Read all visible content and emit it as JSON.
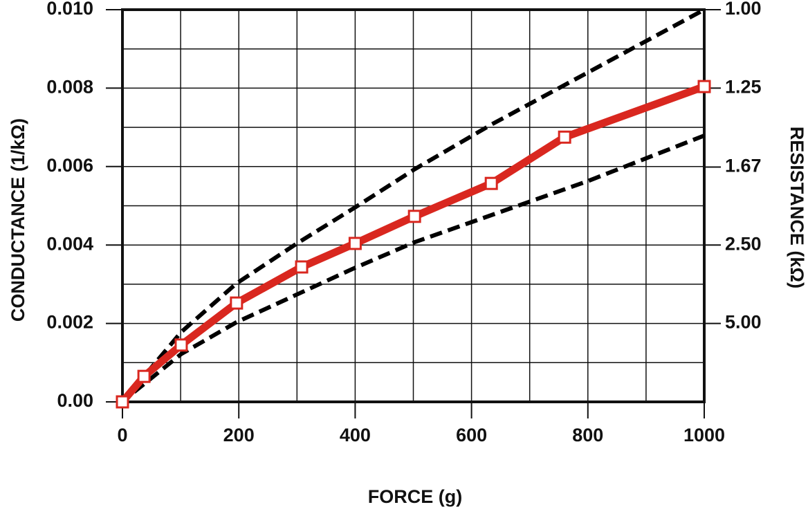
{
  "chart_data": {
    "type": "line",
    "ylabel": "CONDUCTANCE (1/kΩ)",
    "y2label": "RESISTANCE (kΩ)",
    "xlabel": "FORCE (g)",
    "xlim": [
      0,
      1000
    ],
    "xticks": [
      0,
      200,
      400,
      600,
      800,
      1000
    ],
    "xminor_ticks": [
      100,
      300,
      500,
      700,
      900
    ],
    "ylim": [
      0,
      0.01
    ],
    "yticks": [
      {
        "value": 0,
        "label": "0.00"
      },
      0.002,
      0.004,
      0.006,
      0.008,
      {
        "value": 0.01,
        "label": "0.010"
      }
    ],
    "yminor_ticks": [
      0.001,
      0.003,
      0.005,
      0.007,
      0.009
    ],
    "y2scale": "reciprocal",
    "y2lim": [
      null,
      1
    ],
    "y2ticks": [
      {
        "value": 1,
        "label": "1.00"
      },
      {
        "value": 1.25,
        "label": "1.25"
      },
      {
        "value": 1.67,
        "label": "1.67"
      },
      {
        "value": 2.5,
        "label": "2.50"
      },
      {
        "value": 5,
        "label": "5.00"
      }
    ],
    "grid": true,
    "series": [
      {
        "color": "#000000",
        "style": "dashed",
        "x": [
          20,
          101,
          196,
          300,
          400,
          502,
          634,
          1000
        ],
        "values": [
          0.00035,
          0.00178,
          0.00302,
          0.00404,
          0.00496,
          0.00593,
          0.00707,
          0.01
        ]
      },
      {
        "color": "#000000",
        "style": "dashed",
        "x": [
          20,
          101,
          196,
          400,
          502,
          800,
          1000
        ],
        "values": [
          0.00025,
          0.00122,
          0.00203,
          0.00342,
          0.00407,
          0.00563,
          0.00679
        ]
      },
      {
        "color": "#d9271f",
        "style": "solid",
        "marker": "square",
        "x": [
          0,
          37,
          101,
          196,
          308,
          400,
          502,
          634,
          760,
          1000
        ],
        "values": [
          0,
          0.00065,
          0.00145,
          0.00252,
          0.00344,
          0.00404,
          0.00473,
          0.00557,
          0.00675,
          0.00804
        ]
      }
    ]
  }
}
